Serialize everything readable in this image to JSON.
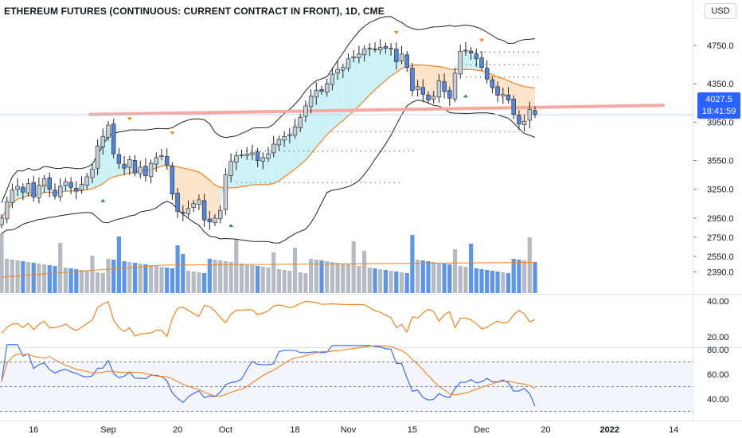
{
  "header": {
    "title": "ETHEREUM FUTURES (CONTINUOUS: CURRENT CONTRACT IN FRONT), 1D, CME",
    "currency": "USD",
    "top_axis_partial": "52"
  },
  "last_price": {
    "value": "4027.5",
    "countdown": "18:41:59"
  },
  "colors": {
    "up_candle": "#c9cdd6",
    "down_candle": "#4f86e2",
    "ma_line": "#f5821f",
    "bands": "#222222",
    "resistance": "#f5a9a0",
    "price_line": "#2962ff",
    "vol_up": "#b6bac2",
    "vol_down": "#5c95ec"
  },
  "chart_data": [
    {
      "type": "candlestick",
      "title": "ETHEREUM FUTURES (CONTINUOUS: CURRENT CONTRACT IN FRONT), 1D, CME",
      "x_tick_labels": [
        "16",
        "Sep",
        "20",
        "Oct",
        "18",
        "Nov",
        "15",
        "Dec",
        "20",
        "2022",
        "14"
      ],
      "x_tick_indices": [
        6,
        20,
        33,
        42,
        55,
        65,
        77,
        90,
        102,
        114,
        126
      ],
      "y_tick_labels": [
        "4750.0",
        "4350.0",
        "3950.0",
        "3550.0",
        "3250.0",
        "2950.0",
        "2750.0",
        "2550.0",
        "2390.0"
      ],
      "y_ticks": [
        4750,
        4350,
        3950,
        3550,
        3250,
        2950,
        2750,
        2550,
        2390
      ],
      "close": [
        2950,
        3120,
        3240,
        3280,
        3220,
        3310,
        3170,
        3290,
        3360,
        3250,
        3180,
        3280,
        3330,
        3270,
        3230,
        3300,
        3380,
        3460,
        3700,
        3800,
        3920,
        3620,
        3520,
        3470,
        3560,
        3420,
        3480,
        3390,
        3520,
        3580,
        3600,
        3500,
        3200,
        3020,
        3000,
        3050,
        3100,
        3140,
        2930,
        2910,
        2950,
        3030,
        3400,
        3540,
        3600,
        3610,
        3620,
        3630,
        3550,
        3580,
        3620,
        3720,
        3770,
        3800,
        3820,
        3900,
        4000,
        4120,
        4220,
        4280,
        4270,
        4350,
        4450,
        4500,
        4520,
        4610,
        4630,
        4660,
        4710,
        4720,
        4710,
        4730,
        4720,
        4720,
        4580,
        4660,
        4520,
        4280,
        4320,
        4240,
        4180,
        4220,
        4380,
        4270,
        4200,
        4460,
        4690,
        4700,
        4670,
        4610,
        4520,
        4400,
        4310,
        4230,
        4240,
        4180,
        4030,
        3930,
        3960,
        4080,
        4027.5
      ]
    },
    {
      "type": "line",
      "name": "indicator",
      "y_tick_labels": [
        "40.00",
        "20.00"
      ],
      "y_ticks": [
        40,
        20
      ]
    },
    {
      "type": "line",
      "name": "oscillator",
      "y_tick_labels": [
        "80.00",
        "60.00",
        "40.00"
      ],
      "y_ticks": [
        80,
        60,
        40
      ]
    }
  ]
}
